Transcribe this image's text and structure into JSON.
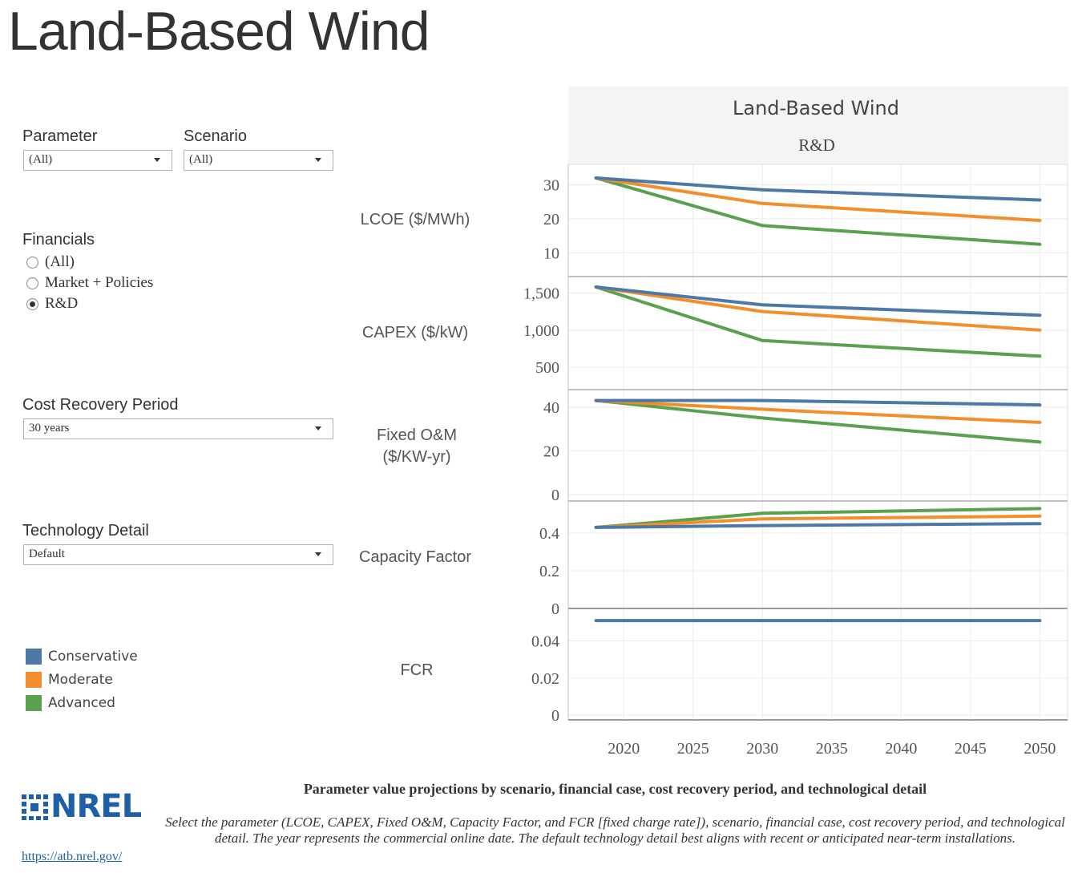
{
  "page": {
    "title": "Land-Based Wind"
  },
  "filters": {
    "parameter": {
      "label": "Parameter",
      "value": "(All)"
    },
    "scenario": {
      "label": "Scenario",
      "value": "(All)"
    },
    "financials": {
      "label": "Financials",
      "options": [
        "(All)",
        "Market + Policies",
        "R&D"
      ],
      "selected_index": 2
    },
    "cost_recovery": {
      "label": "Cost Recovery Period",
      "value": "30 years"
    },
    "technology_detail": {
      "label": "Technology Detail",
      "value": "Default"
    }
  },
  "legend": [
    {
      "label": "Conservative",
      "color": "#4e79a7"
    },
    {
      "label": "Moderate",
      "color": "#f28e2b"
    },
    {
      "label": "Advanced",
      "color": "#59a14f"
    }
  ],
  "row_labels": {
    "lcoe": "LCOE ($/MWh)",
    "capex": "CAPEX ($/kW)",
    "fom_line1": "Fixed O&M",
    "fom_line2": "($/KW-yr)",
    "cf": "Capacity Factor",
    "fcr": "FCR"
  },
  "chart_data": {
    "type": "line",
    "title": "Land-Based Wind",
    "subtitle": "R&D",
    "x_ticks": [
      "2020",
      "2025",
      "2030",
      "2035",
      "2040",
      "2045",
      "2050"
    ],
    "xlim": [
      2016,
      2052
    ],
    "panels": [
      {
        "name": "LCOE ($/MWh)",
        "ylim": [
          3,
          36
        ],
        "y_ticks": [
          10,
          20,
          30
        ],
        "y_tick_labels": [
          "10",
          "20",
          "30"
        ],
        "x": [
          2018,
          2030,
          2050
        ],
        "series": [
          {
            "name": "Conservative",
            "values": [
              32,
              28.5,
              25.5
            ]
          },
          {
            "name": "Moderate",
            "values": [
              32,
              24.5,
              19.5
            ]
          },
          {
            "name": "Advanced",
            "values": [
              32,
              18,
              12.5
            ]
          }
        ]
      },
      {
        "name": "CAPEX ($/kW)",
        "ylim": [
          200,
          1720
        ],
        "y_ticks": [
          500,
          1000,
          1500
        ],
        "y_tick_labels": [
          "500",
          "1,000",
          "1,500"
        ],
        "x": [
          2018,
          2030,
          2050
        ],
        "series": [
          {
            "name": "Conservative",
            "values": [
              1580,
              1340,
              1200
            ]
          },
          {
            "name": "Moderate",
            "values": [
              1580,
              1250,
              1000
            ]
          },
          {
            "name": "Advanced",
            "values": [
              1580,
              860,
              650
            ]
          }
        ]
      },
      {
        "name": "Fixed O&M ($/KW-yr)",
        "ylim": [
          -3,
          48
        ],
        "y_ticks": [
          0,
          20,
          40
        ],
        "y_tick_labels": [
          "0",
          "20",
          "40"
        ],
        "x": [
          2018,
          2030,
          2050
        ],
        "series": [
          {
            "name": "Conservative",
            "values": [
              43,
              43,
              41
            ]
          },
          {
            "name": "Moderate",
            "values": [
              43,
              39,
              33
            ]
          },
          {
            "name": "Advanced",
            "values": [
              43,
              35,
              24
            ]
          }
        ]
      },
      {
        "name": "Capacity Factor",
        "ylim": [
          0,
          0.57
        ],
        "y_ticks": [
          0,
          0.2,
          0.4
        ],
        "y_tick_labels": [
          "0",
          "0.2",
          "0.4"
        ],
        "x": [
          2018,
          2030,
          2050
        ],
        "series": [
          {
            "name": "Conservative",
            "values": [
              0.43,
              0.44,
              0.45
            ]
          },
          {
            "name": "Moderate",
            "values": [
              0.43,
              0.475,
              0.49
            ]
          },
          {
            "name": "Advanced",
            "values": [
              0.43,
              0.505,
              0.53
            ]
          }
        ]
      },
      {
        "name": "FCR",
        "ylim": [
          -0.0025,
          0.0575
        ],
        "y_ticks": [
          0,
          0.02,
          0.04
        ],
        "y_tick_labels": [
          "0",
          "0.02",
          "0.04"
        ],
        "x": [
          2018,
          2030,
          2050
        ],
        "series": [
          {
            "name": "Conservative",
            "values": [
              0.051,
              0.051,
              0.051
            ]
          }
        ]
      }
    ]
  },
  "footer": {
    "logo_text": "NREL",
    "link": "https://atb.nrel.gov/",
    "title": "Parameter value projections by scenario, financial case, cost recovery period, and technological detail",
    "description": "Select the parameter (LCOE, CAPEX, Fixed O&M, Capacity Factor, and FCR [fixed charge rate]), scenario, financial case, cost recovery period, and technological detail. The year represents the commercial online date. The default technology detail best aligns with recent or anticipated near-term installations."
  }
}
